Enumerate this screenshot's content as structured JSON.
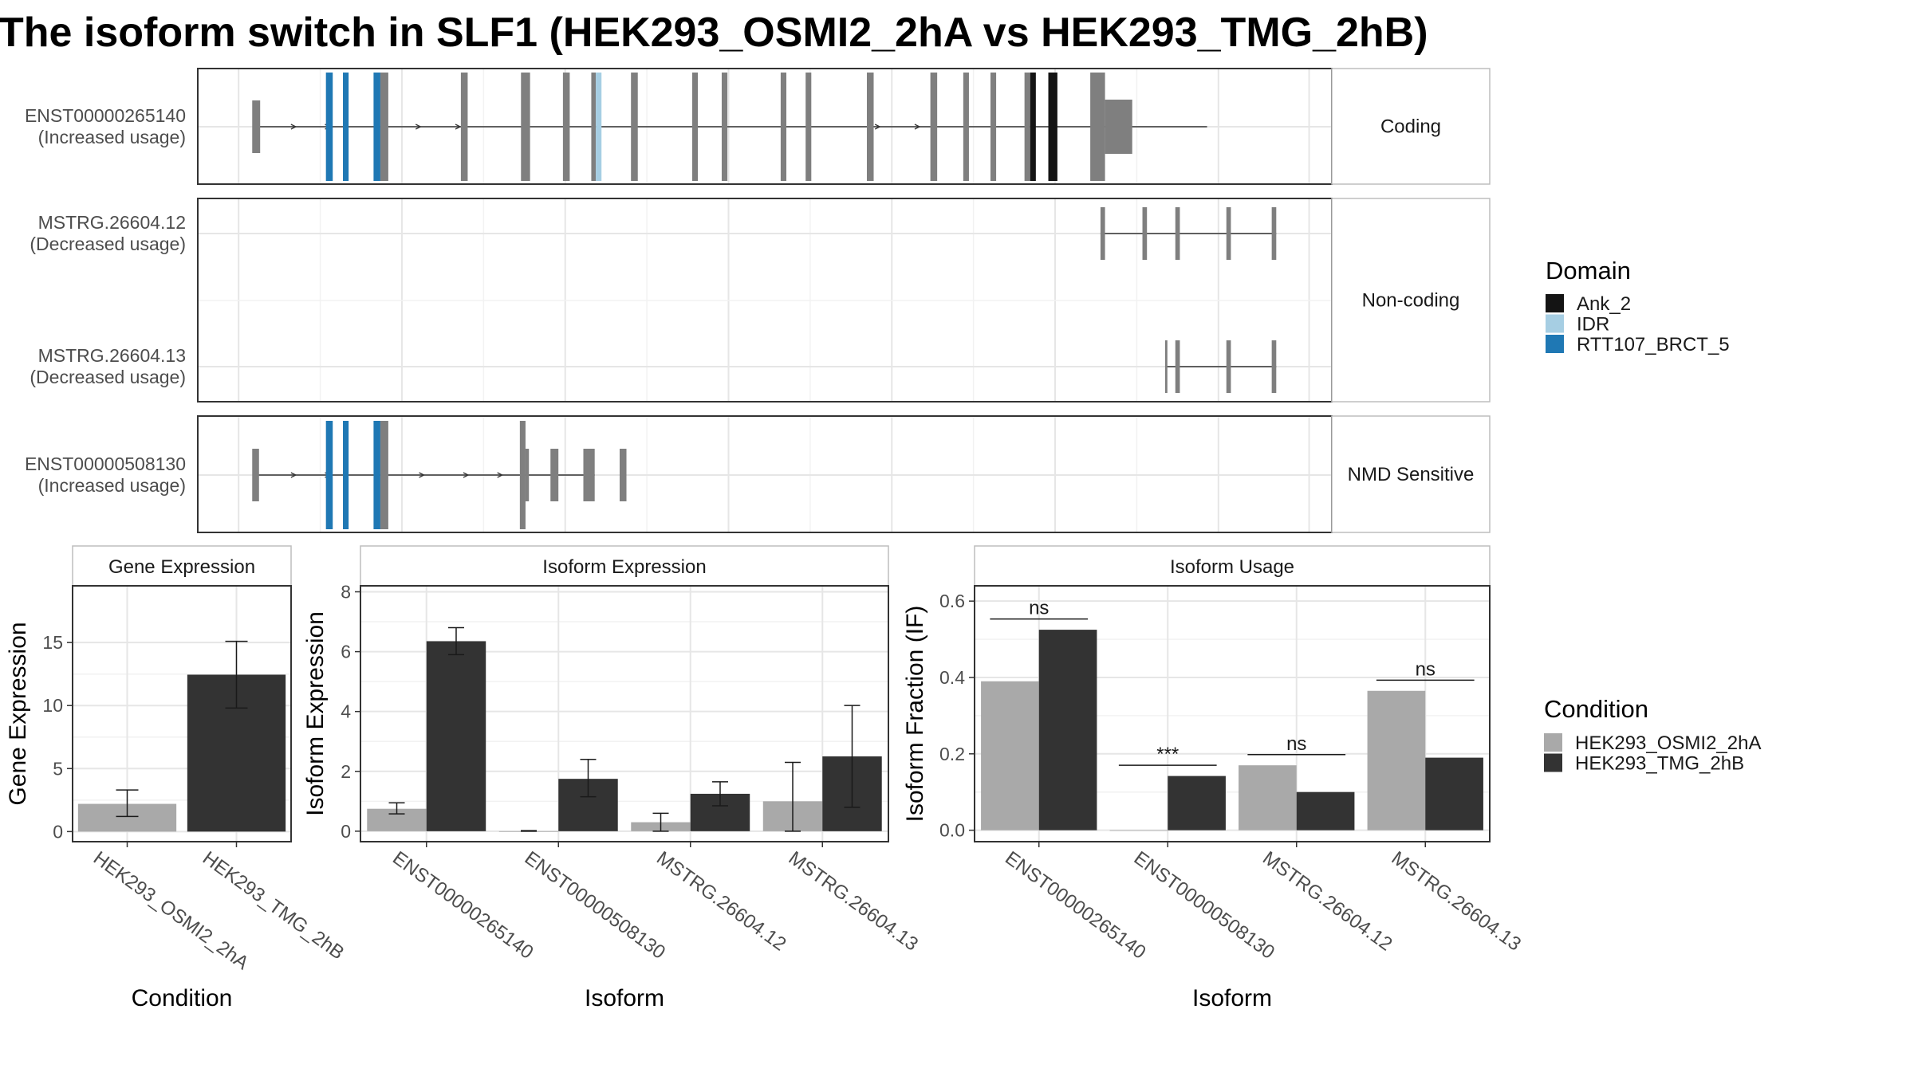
{
  "title": "The isoform switch in SLF1 (HEK293_OSMI2_2hA vs HEK293_TMG_2hB)",
  "colors": {
    "exon": "#7f7f7f",
    "bar_a": "#a9a9a9",
    "bar_b": "#333333",
    "panel_border": "#333333",
    "strip_border": "#bdbdbd",
    "grid_major": "#e6e6e6",
    "grid_minor": "#f2f2f2"
  },
  "domain_legend": {
    "title": "Domain",
    "items": [
      {
        "name": "Ank_2",
        "color": "#141414"
      },
      {
        "name": "IDR",
        "color": "#a6cee3"
      },
      {
        "name": "RTT107_BRCT_5",
        "color": "#1f78b4"
      }
    ]
  },
  "condition_legend": {
    "title": "Condition",
    "items": [
      {
        "name": "HEK293_OSMI2_2hA",
        "color": "#a9a9a9"
      },
      {
        "name": "HEK293_TMG_2hB",
        "color": "#333333"
      }
    ]
  },
  "chart_data": [
    {
      "type": "gene-structure",
      "panels": [
        {
          "label": "Coding",
          "tracks": [
            {
              "id": "ENST00000265140",
              "usage": "(Increased usage)",
              "intron": [
                0.05,
                0.89
              ],
              "arrows": [
                0.085,
                0.115,
                0.195,
                0.23,
                0.6,
                0.635
              ],
              "exons": [
                {
                  "s": 0.048,
                  "e": 0.055,
                  "k": "small"
                },
                {
                  "s": 0.113,
                  "e": 0.119,
                  "d": "RTT107_BRCT_5"
                },
                {
                  "s": 0.128,
                  "e": 0.133,
                  "d": "RTT107_BRCT_5"
                },
                {
                  "s": 0.155,
                  "e": 0.161,
                  "d": "RTT107_BRCT_5"
                },
                {
                  "s": 0.161,
                  "e": 0.168
                },
                {
                  "s": 0.232,
                  "e": 0.238
                },
                {
                  "s": 0.285,
                  "e": 0.293
                },
                {
                  "s": 0.322,
                  "e": 0.328
                },
                {
                  "s": 0.347,
                  "e": 0.351
                },
                {
                  "s": 0.351,
                  "e": 0.356,
                  "d": "IDR"
                },
                {
                  "s": 0.382,
                  "e": 0.388
                },
                {
                  "s": 0.436,
                  "e": 0.441
                },
                {
                  "s": 0.462,
                  "e": 0.467
                },
                {
                  "s": 0.514,
                  "e": 0.519
                },
                {
                  "s": 0.536,
                  "e": 0.541
                },
                {
                  "s": 0.59,
                  "e": 0.596
                },
                {
                  "s": 0.646,
                  "e": 0.652
                },
                {
                  "s": 0.675,
                  "e": 0.68
                },
                {
                  "s": 0.699,
                  "e": 0.704
                },
                {
                  "s": 0.729,
                  "e": 0.734
                },
                {
                  "s": 0.734,
                  "e": 0.739,
                  "d": "Ank_2"
                },
                {
                  "s": 0.75,
                  "e": 0.758,
                  "d": "Ank_2"
                },
                {
                  "s": 0.787,
                  "e": 0.8
                },
                {
                  "s": 0.8,
                  "e": 0.824,
                  "k": "utr"
                }
              ]
            }
          ]
        },
        {
          "label": "Non-coding",
          "tracks": [
            {
              "id": "MSTRG.26604.12",
              "usage": "(Decreased usage)",
              "intron": [
                0.796,
                0.951
              ],
              "arrows": [],
              "exons": [
                {
                  "s": 0.796,
                  "e": 0.8,
                  "k": "nc"
                },
                {
                  "s": 0.833,
                  "e": 0.837,
                  "k": "nc"
                },
                {
                  "s": 0.862,
                  "e": 0.866,
                  "k": "nc"
                },
                {
                  "s": 0.907,
                  "e": 0.911,
                  "k": "nc"
                },
                {
                  "s": 0.947,
                  "e": 0.951,
                  "k": "nc"
                }
              ]
            },
            {
              "id": "MSTRG.26604.13",
              "usage": "(Decreased usage)",
              "intron": [
                0.853,
                0.951
              ],
              "arrows": [],
              "exons": [
                {
                  "s": 0.853,
                  "e": 0.855,
                  "k": "nc"
                },
                {
                  "s": 0.862,
                  "e": 0.866,
                  "k": "nc"
                },
                {
                  "s": 0.907,
                  "e": 0.911,
                  "k": "nc"
                },
                {
                  "s": 0.947,
                  "e": 0.951,
                  "k": "nc"
                }
              ]
            }
          ]
        },
        {
          "label": "NMD Sensitive",
          "tracks": [
            {
              "id": "ENST00000508130",
              "usage": "(Increased usage)",
              "intron": [
                0.05,
                0.35
              ],
              "arrows": [
                0.085,
                0.115,
                0.198,
                0.237,
                0.267
              ],
              "exons": [
                {
                  "s": 0.048,
                  "e": 0.054,
                  "k": "small"
                },
                {
                  "s": 0.113,
                  "e": 0.119,
                  "d": "RTT107_BRCT_5"
                },
                {
                  "s": 0.128,
                  "e": 0.133,
                  "d": "RTT107_BRCT_5"
                },
                {
                  "s": 0.155,
                  "e": 0.161,
                  "d": "RTT107_BRCT_5"
                },
                {
                  "s": 0.161,
                  "e": 0.168
                },
                {
                  "s": 0.284,
                  "e": 0.289
                },
                {
                  "s": 0.289,
                  "e": 0.292,
                  "k": "small"
                },
                {
                  "s": 0.311,
                  "e": 0.318,
                  "k": "small"
                },
                {
                  "s": 0.34,
                  "e": 0.35,
                  "k": "small"
                },
                {
                  "s": 0.372,
                  "e": 0.378,
                  "k": "small"
                }
              ]
            }
          ]
        }
      ]
    },
    {
      "type": "bar",
      "title": "Gene Expression",
      "xlabel": "Condition",
      "ylabel": "Gene Expression",
      "ylim": [
        -0.8,
        19.5
      ],
      "yticks": [
        0,
        5,
        10,
        15
      ],
      "categories": [
        "HEK293_OSMI2_2hA",
        "HEK293_TMG_2hB"
      ],
      "series": [
        {
          "values": [
            2.2,
            12.45
          ],
          "err_low": [
            1.2,
            9.8
          ],
          "err_high": [
            3.3,
            15.1
          ]
        }
      ],
      "bar_colors": [
        "#a9a9a9",
        "#333333"
      ],
      "annotations": []
    },
    {
      "type": "bar",
      "title": "Isoform Expression",
      "xlabel": "Isoform",
      "ylabel": "Isoform Expression",
      "ylim": [
        -0.35,
        8.2
      ],
      "yticks": [
        0,
        2,
        4,
        6,
        8
      ],
      "categories": [
        "ENST00000265140",
        "ENST00000508130",
        "MSTRG.26604.12",
        "MSTRG.26604.13"
      ],
      "series": [
        {
          "name": "HEK293_OSMI2_2hA",
          "values": [
            0.75,
            0.0,
            0.3,
            1.0
          ],
          "err_low": [
            0.58,
            0.0,
            0.0,
            0.0
          ],
          "err_high": [
            0.95,
            0.02,
            0.6,
            2.3
          ]
        },
        {
          "name": "HEK293_TMG_2hB",
          "values": [
            6.35,
            1.75,
            1.25,
            2.5
          ],
          "err_low": [
            5.9,
            1.15,
            0.85,
            0.8
          ],
          "err_high": [
            6.8,
            2.4,
            1.65,
            4.2
          ]
        }
      ],
      "annotations": []
    },
    {
      "type": "bar",
      "title": "Isoform Usage",
      "xlabel": "Isoform",
      "ylabel": "Isoform Fraction (IF)",
      "ylim": [
        -0.03,
        0.64
      ],
      "yticks": [
        0.0,
        0.2,
        0.4,
        0.6
      ],
      "categories": [
        "ENST00000265140",
        "ENST00000508130",
        "MSTRG.26604.12",
        "MSTRG.26604.13"
      ],
      "series": [
        {
          "name": "HEK293_OSMI2_2hA",
          "values": [
            0.39,
            0.0,
            0.17,
            0.365
          ]
        },
        {
          "name": "HEK293_TMG_2hB",
          "values": [
            0.525,
            0.142,
            0.1,
            0.19
          ]
        }
      ],
      "annotations": [
        {
          "category": 0,
          "label": "ns",
          "y": 0.553
        },
        {
          "category": 1,
          "label": "***",
          "y": 0.17
        },
        {
          "category": 2,
          "label": "ns",
          "y": 0.198
        },
        {
          "category": 3,
          "label": "ns",
          "y": 0.393
        }
      ]
    }
  ]
}
